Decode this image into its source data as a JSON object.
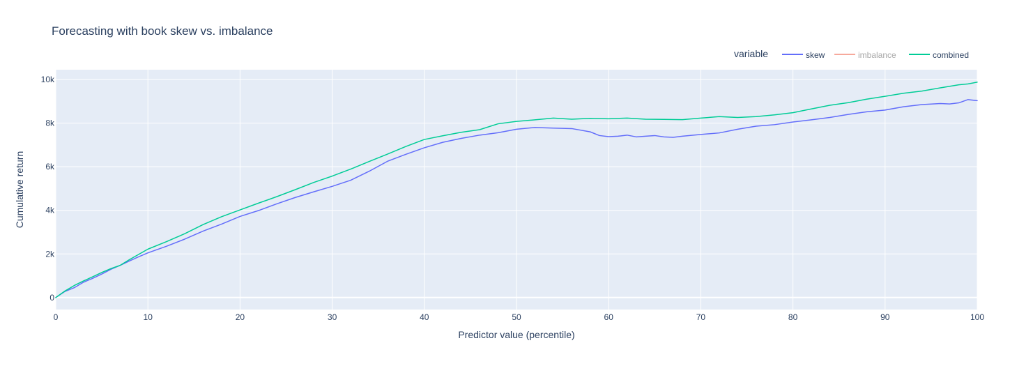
{
  "chart_data": {
    "type": "line",
    "title": "Forecasting with book skew vs. imbalance",
    "xlabel": "Predictor value (percentile)",
    "ylabel": "Cumulative return",
    "xlim": [
      0,
      100
    ],
    "ylim": [
      -550,
      10450
    ],
    "x_ticks": [
      0,
      10,
      20,
      30,
      40,
      50,
      60,
      70,
      80,
      90,
      100
    ],
    "x_tick_labels": [
      "0",
      "10",
      "20",
      "30",
      "40",
      "50",
      "60",
      "70",
      "80",
      "90",
      "100"
    ],
    "y_ticks": [
      0,
      2000,
      4000,
      6000,
      8000,
      10000
    ],
    "y_tick_labels": [
      "0",
      "2k",
      "4k",
      "6k",
      "8k",
      "10k"
    ],
    "grid": true,
    "plot_bgcolor": "#e5ecf6",
    "grid_color": "#ffffff",
    "legend": {
      "title": "variable",
      "placement": "top-right",
      "orientation": "horizontal"
    },
    "series": [
      {
        "name": "skew",
        "color": "#636efa",
        "visible": true,
        "points": [
          [
            0,
            0
          ],
          [
            1,
            280
          ],
          [
            2,
            450
          ],
          [
            3,
            700
          ],
          [
            4,
            880
          ],
          [
            5,
            1080
          ],
          [
            6,
            1300
          ],
          [
            7,
            1480
          ],
          [
            8,
            1680
          ],
          [
            9,
            1870
          ],
          [
            10,
            2050
          ],
          [
            12,
            2350
          ],
          [
            14,
            2680
          ],
          [
            16,
            3050
          ],
          [
            18,
            3370
          ],
          [
            20,
            3720
          ],
          [
            22,
            3990
          ],
          [
            24,
            4300
          ],
          [
            26,
            4590
          ],
          [
            28,
            4850
          ],
          [
            30,
            5100
          ],
          [
            32,
            5380
          ],
          [
            34,
            5790
          ],
          [
            36,
            6250
          ],
          [
            38,
            6570
          ],
          [
            40,
            6870
          ],
          [
            42,
            7120
          ],
          [
            44,
            7300
          ],
          [
            46,
            7450
          ],
          [
            48,
            7560
          ],
          [
            50,
            7720
          ],
          [
            52,
            7800
          ],
          [
            54,
            7770
          ],
          [
            56,
            7750
          ],
          [
            58,
            7600
          ],
          [
            59,
            7430
          ],
          [
            60,
            7380
          ],
          [
            61,
            7400
          ],
          [
            62,
            7450
          ],
          [
            63,
            7370
          ],
          [
            64,
            7400
          ],
          [
            65,
            7430
          ],
          [
            66,
            7370
          ],
          [
            67,
            7350
          ],
          [
            68,
            7400
          ],
          [
            70,
            7480
          ],
          [
            72,
            7550
          ],
          [
            74,
            7720
          ],
          [
            76,
            7860
          ],
          [
            78,
            7930
          ],
          [
            80,
            8050
          ],
          [
            82,
            8150
          ],
          [
            84,
            8260
          ],
          [
            86,
            8400
          ],
          [
            88,
            8520
          ],
          [
            90,
            8600
          ],
          [
            92,
            8750
          ],
          [
            94,
            8850
          ],
          [
            96,
            8900
          ],
          [
            97,
            8880
          ],
          [
            98,
            8930
          ],
          [
            99,
            9080
          ],
          [
            100,
            9030
          ]
        ]
      },
      {
        "name": "imbalance",
        "color": "#ef553b",
        "visible": false,
        "points": []
      },
      {
        "name": "combined",
        "color": "#00cc96",
        "visible": true,
        "points": [
          [
            0,
            0
          ],
          [
            1,
            300
          ],
          [
            2,
            550
          ],
          [
            3,
            760
          ],
          [
            4,
            950
          ],
          [
            5,
            1150
          ],
          [
            6,
            1330
          ],
          [
            7,
            1480
          ],
          [
            8,
            1740
          ],
          [
            9,
            1980
          ],
          [
            10,
            2220
          ],
          [
            12,
            2560
          ],
          [
            14,
            2930
          ],
          [
            16,
            3350
          ],
          [
            18,
            3710
          ],
          [
            20,
            4020
          ],
          [
            22,
            4330
          ],
          [
            24,
            4630
          ],
          [
            26,
            4950
          ],
          [
            28,
            5280
          ],
          [
            30,
            5570
          ],
          [
            32,
            5890
          ],
          [
            34,
            6240
          ],
          [
            36,
            6580
          ],
          [
            38,
            6930
          ],
          [
            40,
            7250
          ],
          [
            42,
            7420
          ],
          [
            44,
            7580
          ],
          [
            46,
            7700
          ],
          [
            48,
            7970
          ],
          [
            50,
            8080
          ],
          [
            52,
            8150
          ],
          [
            54,
            8230
          ],
          [
            56,
            8180
          ],
          [
            58,
            8220
          ],
          [
            60,
            8200
          ],
          [
            62,
            8230
          ],
          [
            64,
            8180
          ],
          [
            66,
            8170
          ],
          [
            68,
            8160
          ],
          [
            70,
            8230
          ],
          [
            72,
            8300
          ],
          [
            74,
            8260
          ],
          [
            76,
            8300
          ],
          [
            78,
            8380
          ],
          [
            80,
            8480
          ],
          [
            82,
            8650
          ],
          [
            84,
            8820
          ],
          [
            86,
            8940
          ],
          [
            88,
            9100
          ],
          [
            90,
            9230
          ],
          [
            92,
            9370
          ],
          [
            94,
            9470
          ],
          [
            96,
            9620
          ],
          [
            98,
            9760
          ],
          [
            99,
            9800
          ],
          [
            100,
            9880
          ]
        ]
      }
    ]
  }
}
